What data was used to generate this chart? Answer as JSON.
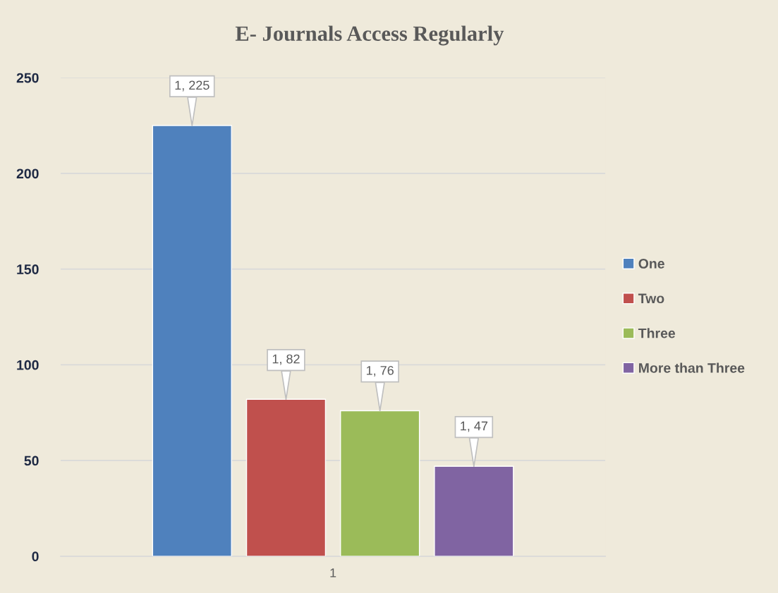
{
  "chart_data": {
    "type": "bar",
    "title": "E- Journals Access Regularly",
    "categories": [
      "1"
    ],
    "series": [
      {
        "name": "One",
        "color": "#4f81bd",
        "values": [
          225
        ],
        "value_labels": [
          "1, 225"
        ]
      },
      {
        "name": "Two",
        "color": "#c0504d",
        "values": [
          82
        ],
        "value_labels": [
          "1, 82"
        ]
      },
      {
        "name": "Three",
        "color": "#9bbb59",
        "values": [
          76
        ],
        "value_labels": [
          "1, 76"
        ]
      },
      {
        "name": "More than Three",
        "color": "#8064a2",
        "values": [
          47
        ],
        "value_labels": [
          "1, 47"
        ]
      }
    ],
    "ylim": [
      0,
      250
    ],
    "yticks": [
      0,
      50,
      100,
      150,
      200,
      250
    ],
    "grid": "y",
    "legend": "right"
  }
}
